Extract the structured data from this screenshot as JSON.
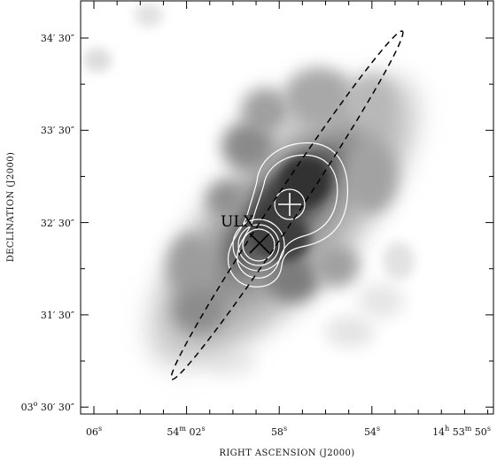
{
  "x_axis": {
    "title": "RIGHT ASCENSION (J2000)",
    "ticks": [
      {
        "main": "06",
        "sup": "s"
      },
      {
        "main": "54",
        "sup": "m",
        "main2": " 02",
        "sup2": "s"
      },
      {
        "main": "58",
        "sup": "s"
      },
      {
        "main": "54",
        "sup": "s"
      },
      {
        "main": "14",
        "sup": "h",
        "main2": " 53",
        "sup2": "m",
        "main3": " 50",
        "sup3": "s"
      }
    ]
  },
  "y_axis": {
    "title": "DECLINATION (J2000)",
    "ticks": [
      {
        "text": "34′ 30″"
      },
      {
        "text": "33′ 30″"
      },
      {
        "text": "32′ 30″"
      },
      {
        "text": "31′ 30″"
      },
      {
        "pre": "03",
        "sup": "o",
        "text": " 30′ 30″"
      }
    ]
  },
  "annotation": {
    "source_label": "ULX"
  },
  "colors": {
    "contour": "#ffffff",
    "ellipse": "#000000",
    "frame": "#000000"
  }
}
